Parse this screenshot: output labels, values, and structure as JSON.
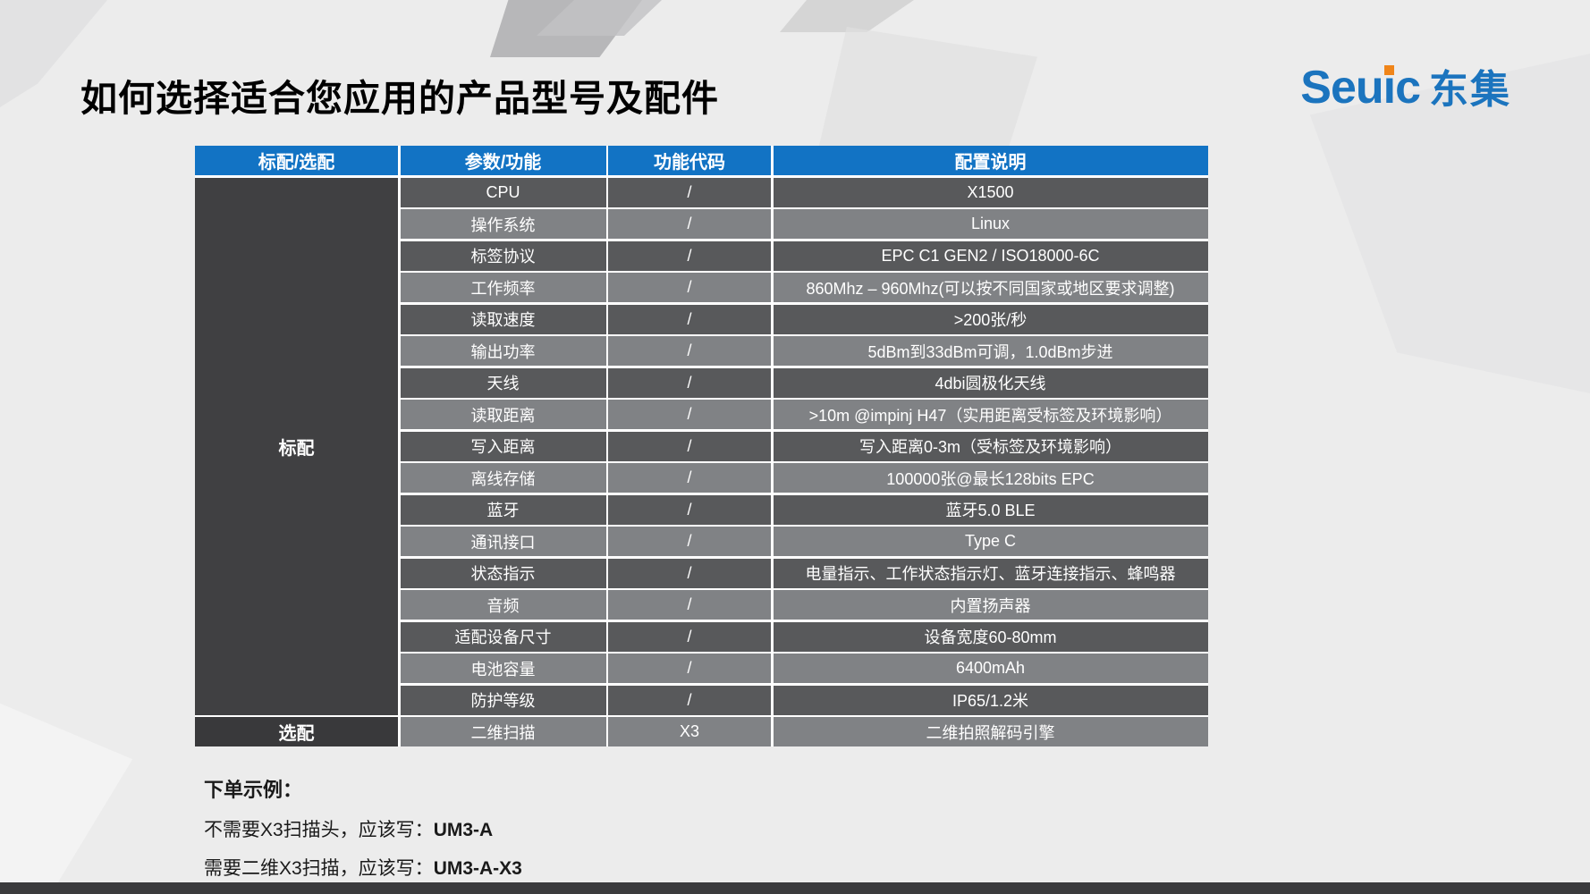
{
  "page": {
    "title": "如何选择适合您应用的产品型号及配件"
  },
  "logo": {
    "brand": "Seuic",
    "brand_cn": "东集",
    "blue": "#1B74BE",
    "orange": "#F08519"
  },
  "colors": {
    "header_blue": "#1273C4",
    "row_dark": "#58595B",
    "row_light": "#808285",
    "group_standard_bg": "#404042",
    "group_optional_bg": "#39393B",
    "slide_background": "#ECECEC"
  },
  "table": {
    "headers": [
      "标配/选配",
      "参数/功能",
      "功能代码",
      "配置说明"
    ],
    "groups": [
      {
        "label": "标配",
        "rows": 17
      },
      {
        "label": "选配",
        "rows": 1
      }
    ],
    "rows": [
      {
        "param": "CPU",
        "code": "/",
        "desc": "X1500"
      },
      {
        "param": "操作系统",
        "code": "/",
        "desc": "Linux"
      },
      {
        "param": "标签协议",
        "code": "/",
        "desc": "EPC C1 GEN2 / ISO18000-6C"
      },
      {
        "param": "工作频率",
        "code": "/",
        "desc": "860Mhz – 960Mhz(可以按不同国家或地区要求调整)"
      },
      {
        "param": "读取速度",
        "code": "/",
        "desc": ">200张/秒"
      },
      {
        "param": "输出功率",
        "code": "/",
        "desc": "5dBm到33dBm可调，1.0dBm步进"
      },
      {
        "param": "天线",
        "code": "/",
        "desc": "4dbi圆极化天线"
      },
      {
        "param": "读取距离",
        "code": "/",
        "desc": ">10m @impinj H47（实用距离受标签及环境影响）"
      },
      {
        "param": "写入距离",
        "code": "/",
        "desc": "写入距离0-3m（受标签及环境影响）"
      },
      {
        "param": "离线存储",
        "code": "/",
        "desc": "100000张@最长128bits EPC"
      },
      {
        "param": "蓝牙",
        "code": "/",
        "desc": "蓝牙5.0 BLE"
      },
      {
        "param": "通讯接口",
        "code": "/",
        "desc": "Type C"
      },
      {
        "param": "状态指示",
        "code": "/",
        "desc": "电量指示、工作状态指示灯、蓝牙连接指示、蜂鸣器"
      },
      {
        "param": "音频",
        "code": "/",
        "desc": "内置扬声器"
      },
      {
        "param": "适配设备尺寸",
        "code": "/",
        "desc": "设备宽度60-80mm"
      },
      {
        "param": "电池容量",
        "code": "/",
        "desc": "6400mAh"
      },
      {
        "param": "防护等级",
        "code": "/",
        "desc": "IP65/1.2米"
      },
      {
        "param": "二维扫描",
        "code": "X3",
        "desc": "二维拍照解码引擎"
      }
    ]
  },
  "notes": {
    "heading": "下单示例：",
    "lines": [
      {
        "prefix": "不需要X3扫描头，应该写：",
        "model": "UM3-A"
      },
      {
        "prefix": "需要二维X3扫描，应该写：",
        "model": "UM3-A-X3"
      }
    ]
  }
}
